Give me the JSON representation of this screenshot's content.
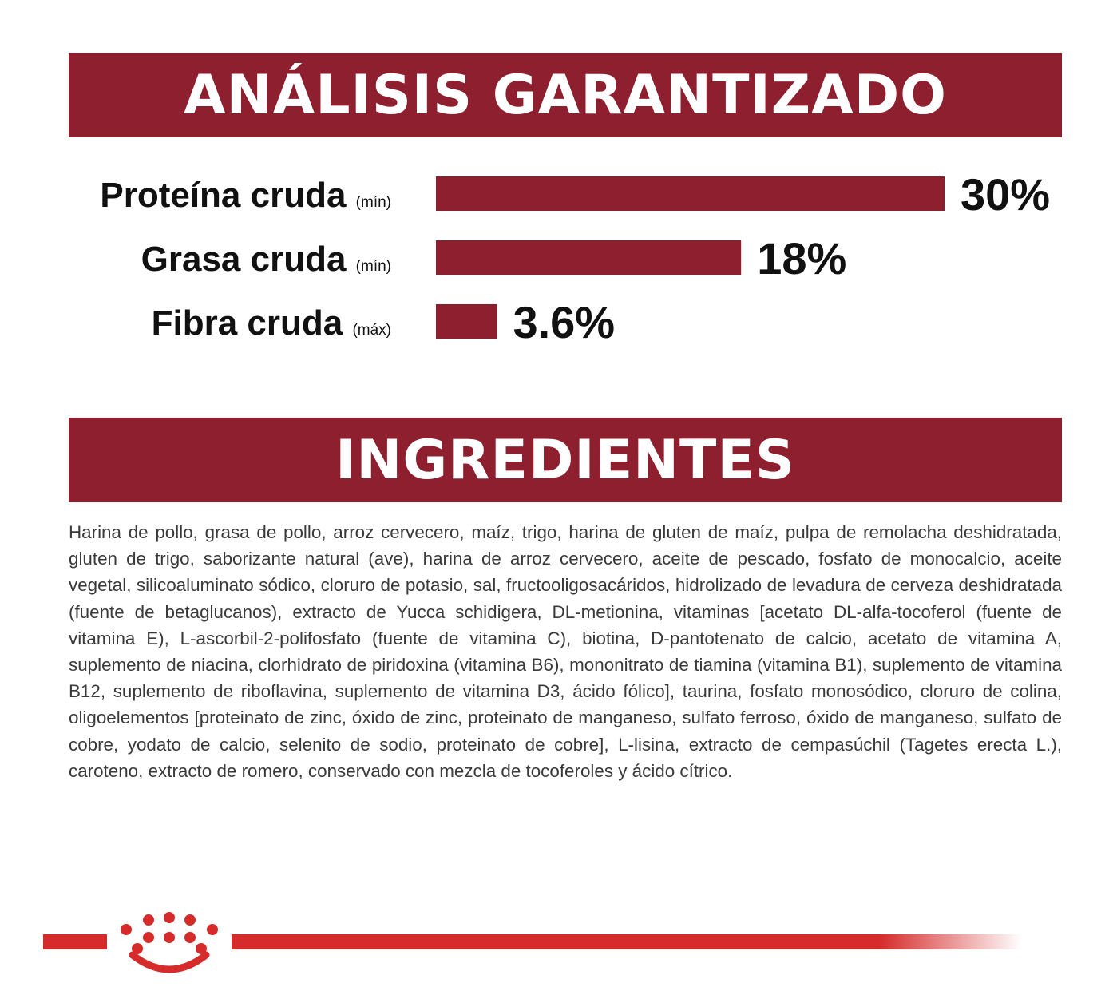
{
  "colors": {
    "banner": "#8e1f2e",
    "bar": "#8e1f2e",
    "footer_line": "#d62b2b",
    "logo": "#d62b2b",
    "label_text": "#111111",
    "body_text": "#3a3a3a"
  },
  "analysis": {
    "title": "ANÁLISIS GARANTIZADO"
  },
  "chart_data": {
    "type": "bar",
    "orientation": "horizontal",
    "categories": [
      "Proteína cruda",
      "Grasa cruda",
      "Fibra cruda"
    ],
    "qualifiers": [
      "(mín)",
      "(mín)",
      "(máx)"
    ],
    "values": [
      30,
      18,
      3.6
    ],
    "value_labels": [
      "30%",
      "18%",
      "3.6%"
    ],
    "unit": "%",
    "xlim": [
      0,
      30
    ],
    "grid": false,
    "legend": "none"
  },
  "ingredients": {
    "title": "INGREDIENTES",
    "text": "Harina de pollo, grasa de pollo, arroz cervecero, maíz, trigo, harina de gluten de maíz, pulpa de remolacha deshidratada, gluten de trigo, saborizante natural (ave), harina de arroz cervecero, aceite de pescado, fosfato de monocalcio, aceite vegetal, silicoaluminato sódico, cloruro de potasio, sal, fructooligosacáridos, hidrolizado de levadura de cerveza deshidratada (fuente de betaglucanos), extracto de Yucca schidigera, DL-metionina, vitaminas [acetato DL-alfa-tocoferol (fuente de vitamina E), L-ascorbil-2-polifosfato (fuente de vitamina C), biotina, D-pantotenato de calcio, acetato de vitamina A, suplemento de niacina, clorhidrato de piridoxina (vitamina B6), mononitrato de tiamina (vitamina B1), suplemento de vitamina B12, suplemento de riboflavina, suplemento de vitamina D3, ácido fólico], taurina, fosfato monosódico, cloruro de colina, oligoelementos [proteinato de zinc, óxido de zinc, proteinato de manganeso, sulfato ferroso, óxido de manganeso, sulfato de cobre, yodato de calcio, selenito de sodio, proteinato de cobre], L-lisina, extracto de cempasúchil (Tagetes erecta L.), caroteno, extracto de romero, conservado con mezcla de tocoferoles y ácido cítrico."
  },
  "footer": {
    "logo_icon": "royal-crown-icon"
  }
}
